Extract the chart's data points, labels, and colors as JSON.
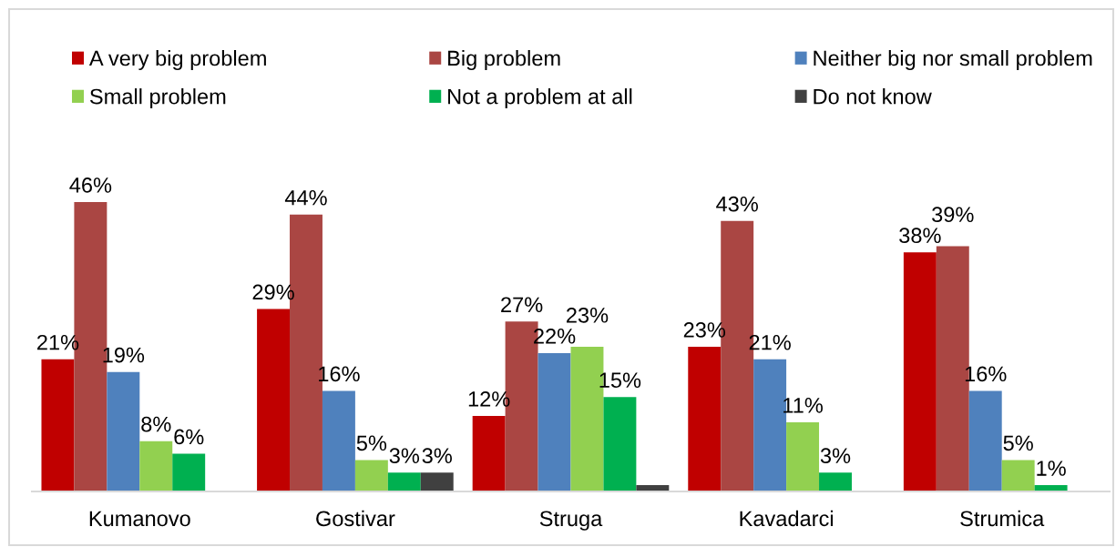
{
  "chart_data": {
    "type": "bar",
    "categories": [
      "Kumanovo",
      "Gostivar",
      "Struga",
      "Kavadarci",
      "Strumica"
    ],
    "tick_labels": "x",
    "legend": "top",
    "series": [
      {
        "name": "A very big problem",
        "color": "#c00000",
        "values": [
          21,
          29,
          12,
          23,
          38
        ],
        "value_labels": [
          "21%",
          "29%",
          "12%",
          "23%",
          "38%"
        ]
      },
      {
        "name": "Big problem",
        "color": "#aa4643",
        "values": [
          46,
          44,
          27,
          43,
          39
        ],
        "value_labels": [
          "46%",
          "44%",
          "27%",
          "43%",
          "39%"
        ]
      },
      {
        "name": "Neither big nor small problem",
        "color": "#4f81bd",
        "values": [
          19,
          16,
          22,
          21,
          16
        ],
        "value_labels": [
          "19%",
          "16%",
          "22%",
          "21%",
          "16%"
        ]
      },
      {
        "name": "Small problem",
        "color": "#92d050",
        "values": [
          8,
          5,
          23,
          11,
          5
        ],
        "value_labels": [
          "8%",
          "5%",
          "23%",
          "11%",
          "5%"
        ]
      },
      {
        "name": "Not a problem at all",
        "color": "#00b050",
        "values": [
          6,
          3,
          15,
          3,
          1
        ],
        "value_labels": [
          "6%",
          "3%",
          "15%",
          "3%",
          "1%"
        ]
      },
      {
        "name": "Do not know",
        "color": "#404040",
        "values": [
          null,
          3,
          1,
          null,
          null
        ],
        "value_labels": [
          null,
          "3%",
          null,
          null,
          null
        ]
      }
    ]
  }
}
